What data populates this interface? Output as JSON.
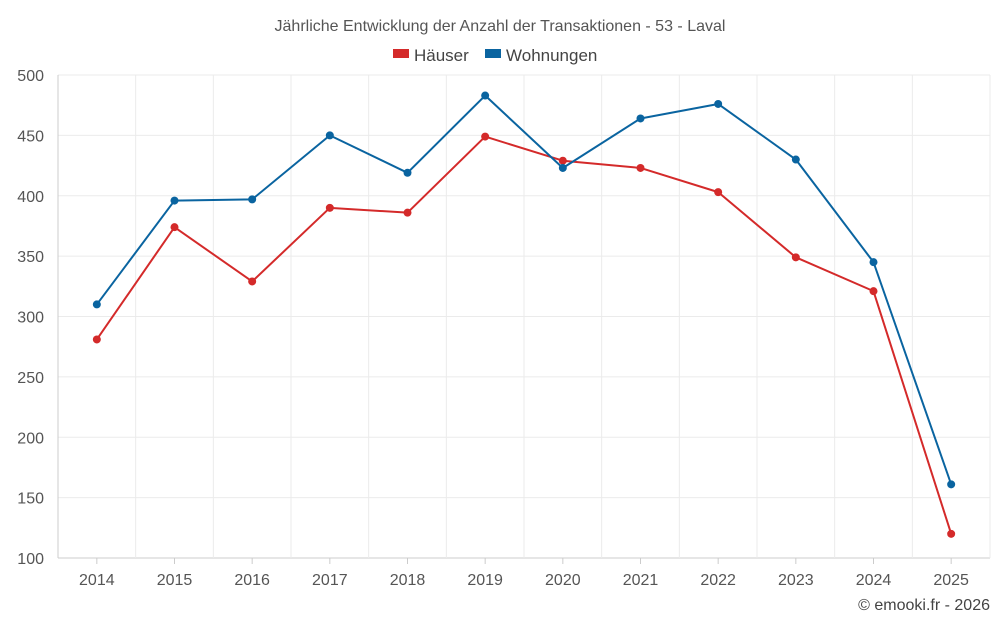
{
  "chart_data": {
    "type": "line",
    "title": "Jährliche Entwicklung der Anzahl der Transaktionen - 53 - Laval",
    "categories": [
      "2014",
      "2015",
      "2016",
      "2017",
      "2018",
      "2019",
      "2020",
      "2021",
      "2022",
      "2023",
      "2024",
      "2025"
    ],
    "series": [
      {
        "name": "Häuser",
        "color": "#d42a2a",
        "values": [
          281,
          374,
          329,
          390,
          386,
          449,
          429,
          423,
          403,
          349,
          321,
          120
        ]
      },
      {
        "name": "Wohnungen",
        "color": "#0a64a0",
        "values": [
          310,
          396,
          397,
          450,
          419,
          483,
          423,
          464,
          476,
          430,
          345,
          161
        ]
      }
    ],
    "ylim": [
      100,
      500
    ],
    "yticks": [
      100,
      150,
      200,
      250,
      300,
      350,
      400,
      450,
      500
    ],
    "xlabel": "",
    "ylabel": "",
    "grid": true,
    "legend_position": "top-center"
  },
  "credit": "© emooki.fr - 2026"
}
